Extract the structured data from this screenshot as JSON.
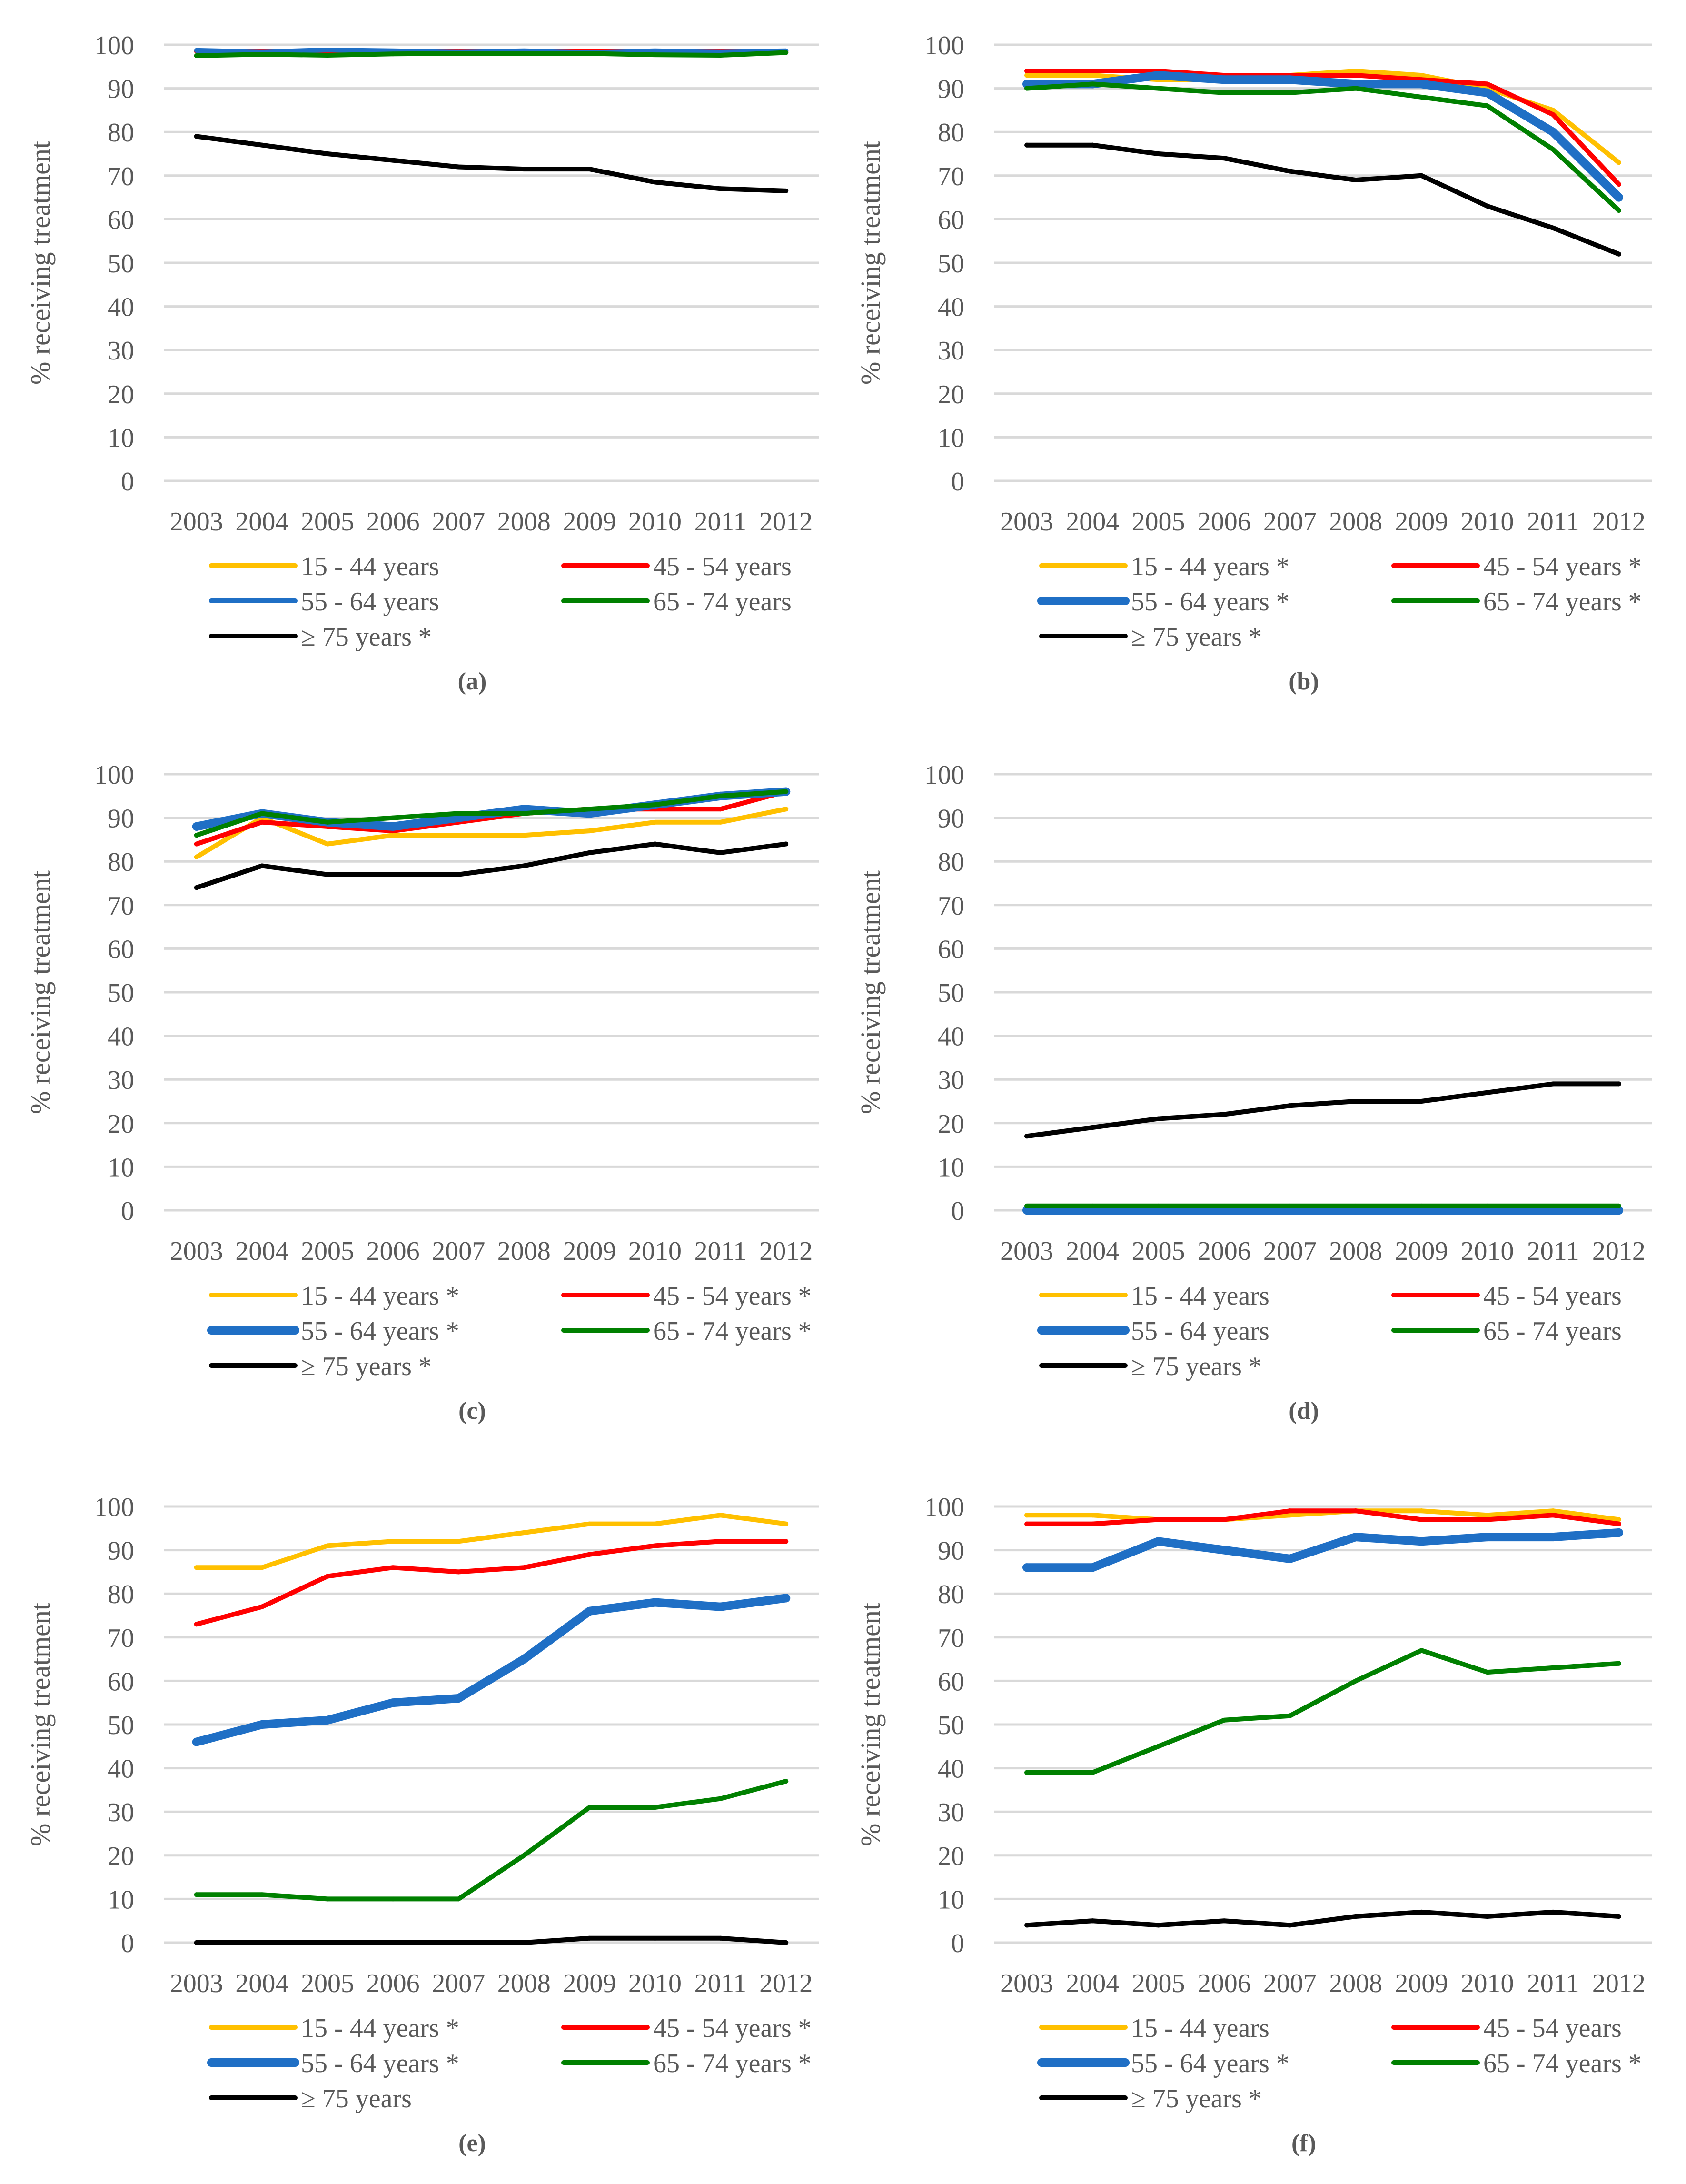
{
  "chart_data": [
    {
      "panel": "a",
      "type": "line",
      "caption": "(a)",
      "title": "",
      "xlabel": "",
      "ylabel": "% receiving treatment",
      "ylim": [
        0,
        100
      ],
      "yticks": [
        "0",
        "10",
        "20",
        "30",
        "40",
        "50",
        "60",
        "70",
        "80",
        "90",
        "100"
      ],
      "categories": [
        "2003",
        "2004",
        "2005",
        "2006",
        "2007",
        "2008",
        "2009",
        "2010",
        "2011",
        "2012"
      ],
      "series": [
        {
          "name": "15 - 44 years",
          "color": "#ffc000",
          "thick": false,
          "values": [
            98.5,
            98.5,
            98.5,
            98.5,
            98.5,
            98.5,
            98.5,
            98.5,
            98.5,
            98.5
          ]
        },
        {
          "name": "45 - 54 years",
          "color": "#ff0000",
          "thick": false,
          "values": [
            98.5,
            98.5,
            98.5,
            98.5,
            98.5,
            98.5,
            98.5,
            98.5,
            98.5,
            98.5
          ]
        },
        {
          "name": "55 - 64 years",
          "color": "#1f6fc5",
          "thick": false,
          "values": [
            98.7,
            98.4,
            98.8,
            98.6,
            98.4,
            98.6,
            98.3,
            98.6,
            98.4,
            98.6
          ]
        },
        {
          "name": "65 - 74 years",
          "color": "#008000",
          "thick": false,
          "values": [
            97.5,
            97.8,
            97.6,
            97.9,
            98.0,
            98.0,
            98.0,
            97.7,
            97.6,
            98.2
          ]
        },
        {
          "name": "≥ 75 years *",
          "color": "#000000",
          "thick": false,
          "values": [
            79,
            77,
            75,
            73.5,
            72,
            71.5,
            71.5,
            68.5,
            67,
            66.5
          ]
        }
      ]
    },
    {
      "panel": "b",
      "type": "line",
      "caption": "(b)",
      "title": "",
      "xlabel": "",
      "ylabel": "% receiving treatment",
      "ylim": [
        0,
        100
      ],
      "yticks": [
        "0",
        "10",
        "20",
        "30",
        "40",
        "50",
        "60",
        "70",
        "80",
        "90",
        "100"
      ],
      "categories": [
        "2003",
        "2004",
        "2005",
        "2006",
        "2007",
        "2008",
        "2009",
        "2010",
        "2011",
        "2012"
      ],
      "series": [
        {
          "name": "15 - 44 years *",
          "color": "#ffc000",
          "thick": false,
          "values": [
            93,
            93,
            92,
            92,
            93,
            94,
            93,
            90,
            85,
            73
          ]
        },
        {
          "name": "45 - 54 years *",
          "color": "#ff0000",
          "thick": false,
          "values": [
            94,
            94,
            94,
            93,
            93,
            93,
            92,
            91,
            84,
            68
          ]
        },
        {
          "name": "55 - 64 years *",
          "color": "#1f6fc5",
          "thick": true,
          "values": [
            91,
            91,
            93,
            92,
            92,
            91,
            91,
            89,
            80,
            65
          ]
        },
        {
          "name": "65 - 74 years *",
          "color": "#008000",
          "thick": false,
          "values": [
            90,
            91,
            90,
            89,
            89,
            90,
            88,
            86,
            76,
            62
          ]
        },
        {
          "name": "≥ 75 years *",
          "color": "#000000",
          "thick": false,
          "values": [
            77,
            77,
            75,
            74,
            71,
            69,
            70,
            63,
            58,
            52
          ]
        }
      ]
    },
    {
      "panel": "c",
      "type": "line",
      "caption": "(c)",
      "title": "",
      "xlabel": "",
      "ylabel": "% receiving treatment",
      "ylim": [
        0,
        100
      ],
      "yticks": [
        "0",
        "10",
        "20",
        "30",
        "40",
        "50",
        "60",
        "70",
        "80",
        "90",
        "100"
      ],
      "categories": [
        "2003",
        "2004",
        "2005",
        "2006",
        "2007",
        "2008",
        "2009",
        "2010",
        "2011",
        "2012"
      ],
      "series": [
        {
          "name": "15 - 44 years *",
          "color": "#ffc000",
          "thick": false,
          "values": [
            81,
            90,
            84,
            86,
            86,
            86,
            87,
            89,
            89,
            92
          ]
        },
        {
          "name": "45 - 54 years *",
          "color": "#ff0000",
          "thick": false,
          "values": [
            84,
            89,
            88,
            87,
            89,
            91,
            92,
            92,
            92,
            96
          ]
        },
        {
          "name": "55 - 64 years *",
          "color": "#1f6fc5",
          "thick": true,
          "values": [
            88,
            91,
            89,
            88,
            90,
            92,
            91,
            93,
            95,
            96
          ]
        },
        {
          "name": "65 - 74 years *",
          "color": "#008000",
          "thick": false,
          "values": [
            86,
            91,
            89,
            90,
            91,
            91,
            92,
            93,
            95,
            96
          ]
        },
        {
          "name": "≥ 75 years *",
          "color": "#000000",
          "thick": false,
          "values": [
            74,
            79,
            77,
            77,
            77,
            79,
            82,
            84,
            82,
            84
          ]
        }
      ]
    },
    {
      "panel": "d",
      "type": "line",
      "caption": "(d)",
      "title": "",
      "xlabel": "",
      "ylabel": "% receiving treatment",
      "ylim": [
        0,
        100
      ],
      "yticks": [
        "0",
        "10",
        "20",
        "30",
        "40",
        "50",
        "60",
        "70",
        "80",
        "90",
        "100"
      ],
      "categories": [
        "2003",
        "2004",
        "2005",
        "2006",
        "2007",
        "2008",
        "2009",
        "2010",
        "2011",
        "2012"
      ],
      "series": [
        {
          "name": "15 - 44 years",
          "color": "#ffc000",
          "thick": false,
          "values": [
            0,
            0,
            0,
            0,
            0,
            0,
            0,
            0,
            0,
            0
          ]
        },
        {
          "name": "45 - 54 years",
          "color": "#ff0000",
          "thick": false,
          "values": [
            0,
            0,
            0,
            0,
            0,
            0,
            0,
            0,
            0,
            0
          ]
        },
        {
          "name": "55 - 64 years",
          "color": "#1f6fc5",
          "thick": true,
          "values": [
            0,
            0,
            0,
            0,
            0,
            0,
            0,
            0,
            0,
            0
          ]
        },
        {
          "name": "65 - 74 years",
          "color": "#008000",
          "thick": false,
          "values": [
            1,
            1,
            1,
            1,
            1,
            1,
            1,
            1,
            1,
            1
          ]
        },
        {
          "name": "≥ 75 years *",
          "color": "#000000",
          "thick": false,
          "values": [
            17,
            19,
            21,
            22,
            24,
            25,
            25,
            27,
            29,
            29
          ]
        }
      ]
    },
    {
      "panel": "e",
      "type": "line",
      "caption": "(e)",
      "title": "",
      "xlabel": "",
      "ylabel": "% receiving treatment",
      "ylim": [
        0,
        100
      ],
      "yticks": [
        "0",
        "10",
        "20",
        "30",
        "40",
        "50",
        "60",
        "70",
        "80",
        "90",
        "100"
      ],
      "categories": [
        "2003",
        "2004",
        "2005",
        "2006",
        "2007",
        "2008",
        "2009",
        "2010",
        "2011",
        "2012"
      ],
      "series": [
        {
          "name": "15 - 44 years *",
          "color": "#ffc000",
          "thick": false,
          "values": [
            86,
            86,
            91,
            92,
            92,
            94,
            96,
            96,
            98,
            96
          ]
        },
        {
          "name": "45 - 54 years *",
          "color": "#ff0000",
          "thick": false,
          "values": [
            73,
            77,
            84,
            86,
            85,
            86,
            89,
            91,
            92,
            92
          ]
        },
        {
          "name": "55 - 64 years *",
          "color": "#1f6fc5",
          "thick": true,
          "values": [
            46,
            50,
            51,
            55,
            56,
            65,
            76,
            78,
            77,
            79
          ]
        },
        {
          "name": "65 - 74 years *",
          "color": "#008000",
          "thick": false,
          "values": [
            11,
            11,
            10,
            10,
            10,
            20,
            31,
            31,
            33,
            37
          ]
        },
        {
          "name": "≥ 75 years",
          "color": "#000000",
          "thick": false,
          "values": [
            0,
            0,
            0,
            0,
            0,
            0,
            1,
            1,
            1,
            0
          ]
        }
      ]
    },
    {
      "panel": "f",
      "type": "line",
      "caption": "(f)",
      "title": "",
      "xlabel": "",
      "ylabel": "% receiving treatment",
      "ylim": [
        0,
        100
      ],
      "yticks": [
        "0",
        "10",
        "20",
        "30",
        "40",
        "50",
        "60",
        "70",
        "80",
        "90",
        "100"
      ],
      "categories": [
        "2003",
        "2004",
        "2005",
        "2006",
        "2007",
        "2008",
        "2009",
        "2010",
        "2011",
        "2012"
      ],
      "series": [
        {
          "name": "15 - 44 years",
          "color": "#ffc000",
          "thick": false,
          "values": [
            98,
            98,
            97,
            97,
            98,
            99,
            99,
            98,
            99,
            97
          ]
        },
        {
          "name": "45 - 54 years",
          "color": "#ff0000",
          "thick": false,
          "values": [
            96,
            96,
            97,
            97,
            99,
            99,
            97,
            97,
            98,
            96
          ]
        },
        {
          "name": "55 - 64 years *",
          "color": "#1f6fc5",
          "thick": true,
          "values": [
            86,
            86,
            92,
            90,
            88,
            93,
            92,
            93,
            93,
            94
          ]
        },
        {
          "name": "65 - 74 years *",
          "color": "#008000",
          "thick": false,
          "values": [
            39,
            39,
            45,
            51,
            52,
            60,
            67,
            62,
            63,
            64
          ]
        },
        {
          "name": "≥ 75 years *",
          "color": "#000000",
          "thick": false,
          "values": [
            4,
            5,
            4,
            5,
            4,
            6,
            7,
            6,
            7,
            6
          ]
        }
      ]
    }
  ]
}
